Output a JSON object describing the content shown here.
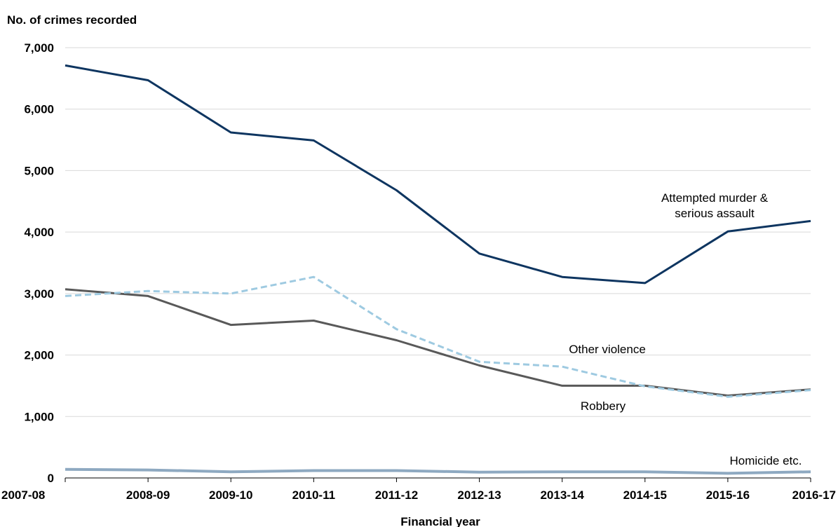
{
  "chart_data": {
    "type": "line",
    "title": "",
    "ylabel": "No. of crimes recorded",
    "xlabel": "Financial year",
    "ylim": [
      0,
      7000
    ],
    "yticks": [
      0,
      1000,
      2000,
      3000,
      4000,
      5000,
      6000,
      7000
    ],
    "ytick_labels": [
      "0",
      "1,000",
      "2,000",
      "3,000",
      "4,000",
      "5,000",
      "6,000",
      "7,000"
    ],
    "categories": [
      "2007-08",
      "2008-09",
      "2009-10",
      "2010-11",
      "2011-12",
      "2012-13",
      "2013-14",
      "2014-15",
      "2015-16",
      "2016-17"
    ],
    "grid": true,
    "legend": "none",
    "series": [
      {
        "name": "Attempted murder & serious assault",
        "label_lines": [
          "Attempted murder &",
          "serious assault"
        ],
        "values": [
          6710,
          6470,
          5620,
          5490,
          4680,
          3650,
          3270,
          3170,
          4010,
          4180
        ],
        "color": "#0e3560",
        "dash": "solid"
      },
      {
        "name": "Other violence",
        "label_lines": [
          "Other violence"
        ],
        "values": [
          2960,
          3040,
          3000,
          3270,
          2420,
          1890,
          1810,
          1490,
          1320,
          1430
        ],
        "color": "#9ecae1",
        "dash": "dashed"
      },
      {
        "name": "Robbery",
        "label_lines": [
          "Robbery"
        ],
        "values": [
          3070,
          2960,
          2490,
          2560,
          2240,
          1830,
          1500,
          1500,
          1340,
          1440
        ],
        "color": "#595959",
        "dash": "solid"
      },
      {
        "name": "Homicide etc.",
        "label_lines": [
          "Homicide etc."
        ],
        "values": [
          140,
          130,
          100,
          120,
          120,
          95,
          100,
          100,
          75,
          100
        ],
        "color": "#8ea9c1",
        "dash": "solid"
      }
    ]
  }
}
